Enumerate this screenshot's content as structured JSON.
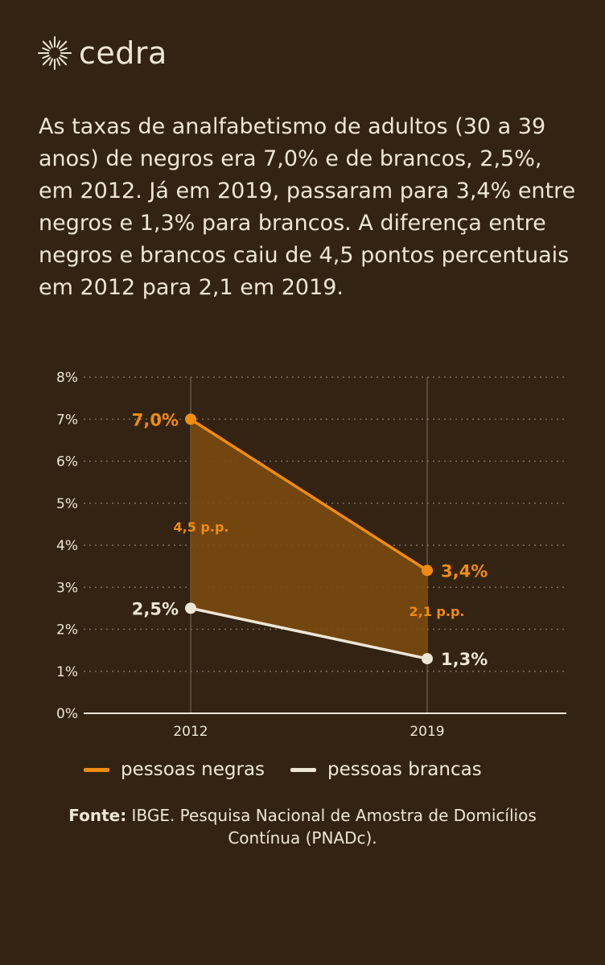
{
  "brand": {
    "name": "cedra",
    "logo_icon": "sunburst-icon"
  },
  "intro_text": "As taxas de analfabetismo de adultos (30 a 39 anos) de negros era 7,0% e de brancos, 2,5%, em 2012. Já em 2019, passaram para 3,4% entre negros e 1,3% para brancos. A diferença entre negros e brancos caiu de 4,5 pontos percentuais em 2012 para 2,1 em 2019.",
  "colors": {
    "background": "#332312",
    "negras": "#f08c10",
    "brancas": "#efe6d6",
    "gap_fill": "#7a4a10",
    "grid": "#7c6c5a"
  },
  "chart_data": {
    "type": "line",
    "x": [
      "2012",
      "2019"
    ],
    "yticks": [
      "0%",
      "1%",
      "2%",
      "3%",
      "4%",
      "5%",
      "6%",
      "7%",
      "8%"
    ],
    "ylim": [
      0,
      8
    ],
    "grid": true,
    "legend_position": "bottom",
    "series": [
      {
        "name": "pessoas negras",
        "values": [
          7.0,
          3.4
        ],
        "labels": [
          "7,0%",
          "3,4%"
        ],
        "color": "#f08c10"
      },
      {
        "name": "pessoas brancas",
        "values": [
          2.5,
          1.3
        ],
        "labels": [
          "2,5%",
          "1,3%"
        ],
        "color": "#efe6d6"
      }
    ],
    "annotations": [
      {
        "text": "4,5 p.p.",
        "x": "2012"
      },
      {
        "text": "2,1 p.p.",
        "x": "2019"
      }
    ]
  },
  "source": {
    "label": "Fonte:",
    "text": "IBGE. Pesquisa Nacional de Amostra de Domicílios Contínua (PNADc)."
  }
}
